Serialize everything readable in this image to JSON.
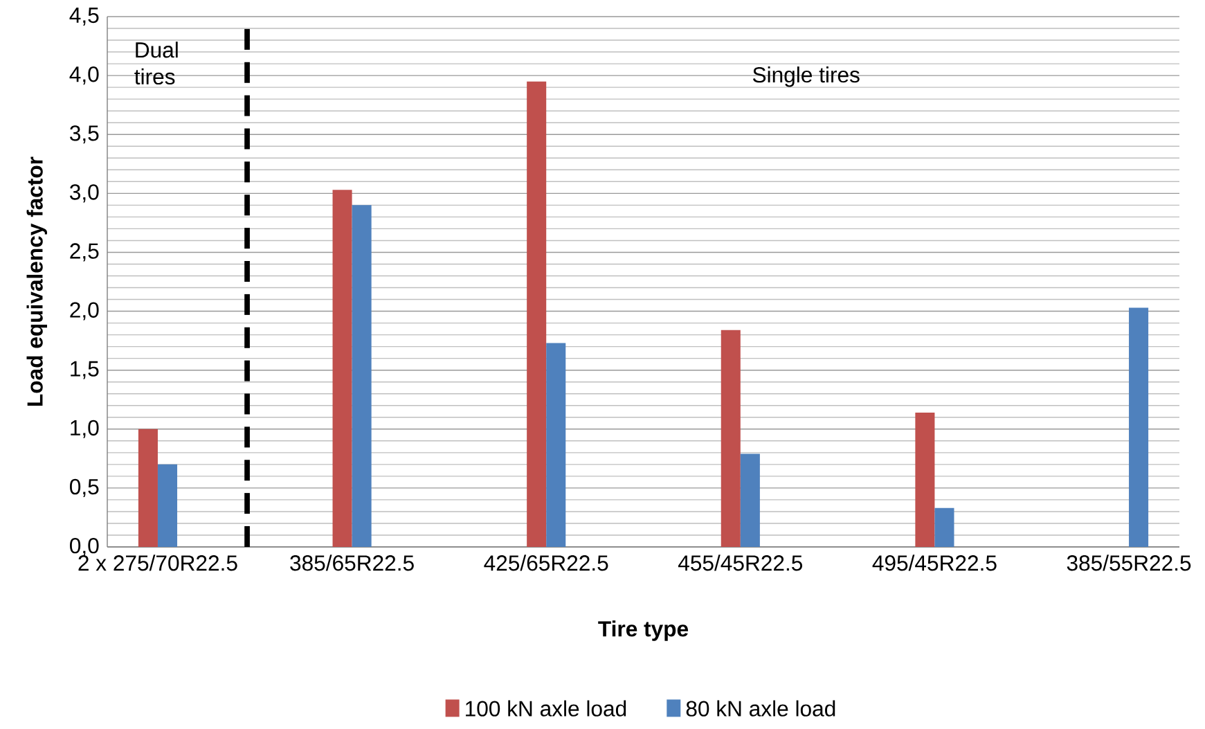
{
  "chart_data": {
    "type": "bar",
    "xlabel": "Tire type",
    "ylabel": "Load equivalency factor",
    "categories": [
      "2 x 275/70R22.5",
      "385/65R22.5",
      "425/65R22.5",
      "455/45R22.5",
      "495/45R22.5",
      "385/55R22.5"
    ],
    "series": [
      {
        "name": "100 kN axle load",
        "color": "#c0504d",
        "values": [
          1.0,
          3.03,
          3.95,
          1.84,
          1.14,
          null
        ]
      },
      {
        "name": "80 kN axle load",
        "color": "#4f81bd",
        "values": [
          0.7,
          2.9,
          1.73,
          0.79,
          0.33,
          2.03
        ]
      }
    ],
    "ylim": [
      0,
      4.5
    ],
    "yticks": [
      {
        "value": 0,
        "label": "0,0"
      },
      {
        "value": 0.5,
        "label": "0,5"
      },
      {
        "value": 1,
        "label": "1,0"
      },
      {
        "value": 1.5,
        "label": "1,5"
      },
      {
        "value": 2,
        "label": "2,0"
      },
      {
        "value": 2.5,
        "label": "2,5"
      },
      {
        "value": 3,
        "label": "3,0"
      },
      {
        "value": 3.5,
        "label": "3,5"
      },
      {
        "value": 4,
        "label": "4,0"
      },
      {
        "value": 4.5,
        "label": "4,5"
      }
    ],
    "grid": "y",
    "legend": "bottom",
    "annotations": [
      "Dual tires",
      "Single tires"
    ]
  }
}
